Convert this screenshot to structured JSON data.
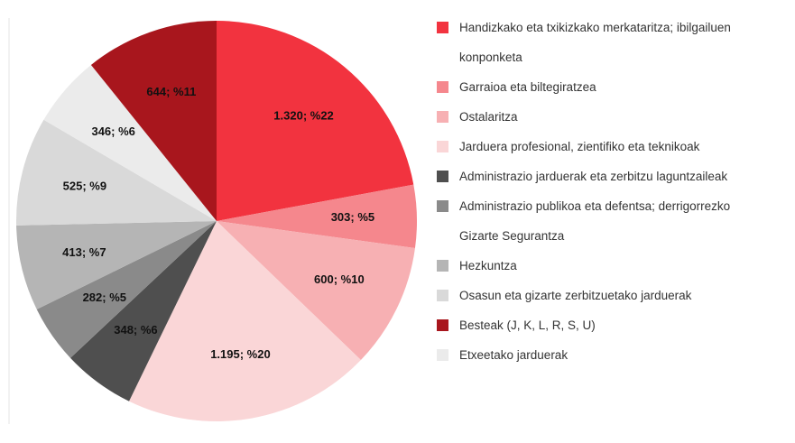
{
  "chart_data": {
    "type": "pie",
    "categories": [
      "Handizkako eta txikizkako merkataritza; ibilgailuen konponketa",
      "Garraioa eta biltegiratzea",
      "Ostalaritza",
      "Jarduera profesional, zientifiko eta teknikoak",
      "Administrazio jarduerak eta zerbitzu laguntzaileak",
      "Administrazio publikoa eta defentsa; derrigorrezko Gizarte Segurantza",
      "Hezkuntza",
      "Osasun eta gizarte zerbitzuetako jarduerak",
      "Etxeetako jarduerak",
      "Besteak (J, K, L, R, S, U)"
    ],
    "values": [
      1320,
      303,
      600,
      1195,
      348,
      282,
      413,
      525,
      346,
      644
    ],
    "value_labels": [
      "1.320; %22",
      "303; %5",
      "600; %10",
      "1.195; %20",
      "348; %6",
      "282; %5",
      "413; %7",
      "525; %9",
      "346; %6",
      "644; %11"
    ],
    "colors": [
      "#f2333f",
      "#f5878d",
      "#f7b0b3",
      "#fad6d7",
      "#4f4f4f",
      "#8a8a8a",
      "#b5b5b5",
      "#d9d9d9",
      "#ebebeb",
      "#a8161d"
    ],
    "legend": "right"
  }
}
